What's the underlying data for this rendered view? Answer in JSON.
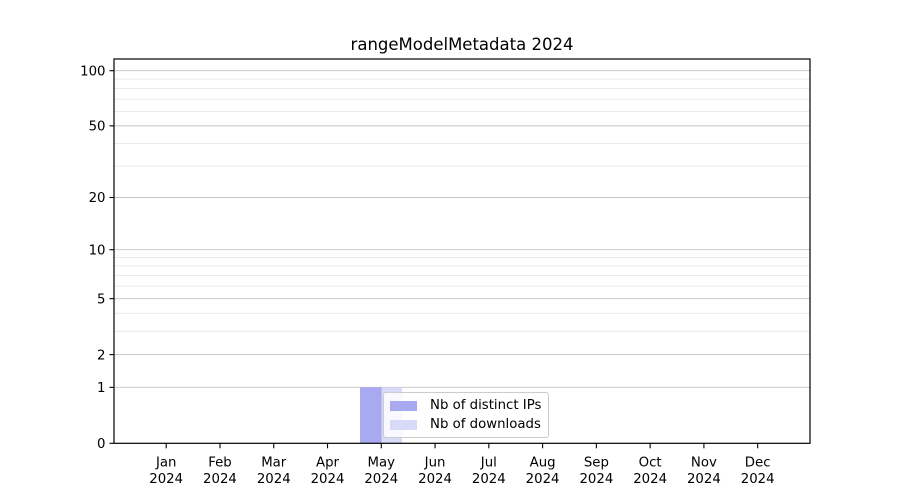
{
  "chart_data": {
    "type": "bar",
    "title": "rangeModelMetadata 2024",
    "year": "2024",
    "categories": [
      "Jan",
      "Feb",
      "Mar",
      "Apr",
      "May",
      "Jun",
      "Jul",
      "Aug",
      "Sep",
      "Oct",
      "Nov",
      "Dec"
    ],
    "series": [
      {
        "name": "Nb of distinct IPs",
        "color": "#a9a9f2",
        "values": [
          0,
          0,
          0,
          0,
          1,
          0,
          0,
          0,
          0,
          0,
          0,
          0
        ]
      },
      {
        "name": "Nb of downloads",
        "color": "#d9d9f8",
        "values": [
          0,
          0,
          0,
          0,
          1,
          0,
          0,
          0,
          0,
          0,
          0,
          0
        ]
      }
    ],
    "xlabel": "",
    "ylabel": "",
    "yscale": "log1p",
    "ylim": [
      0,
      115
    ],
    "y_major_ticks": [
      0,
      1,
      2,
      5,
      10,
      20,
      50,
      100
    ],
    "y_minor_ticks": [
      3,
      4,
      6,
      7,
      8,
      9,
      30,
      40,
      60,
      70,
      80,
      90
    ],
    "grid": true,
    "legend_position": "lower center"
  },
  "colors": {
    "background": "#ffffff",
    "text": "#000000",
    "spine": "#000000",
    "grid_major": "#c3c3c3",
    "grid_minor": "#e8e8e8",
    "legend_border": "#cccccc"
  }
}
